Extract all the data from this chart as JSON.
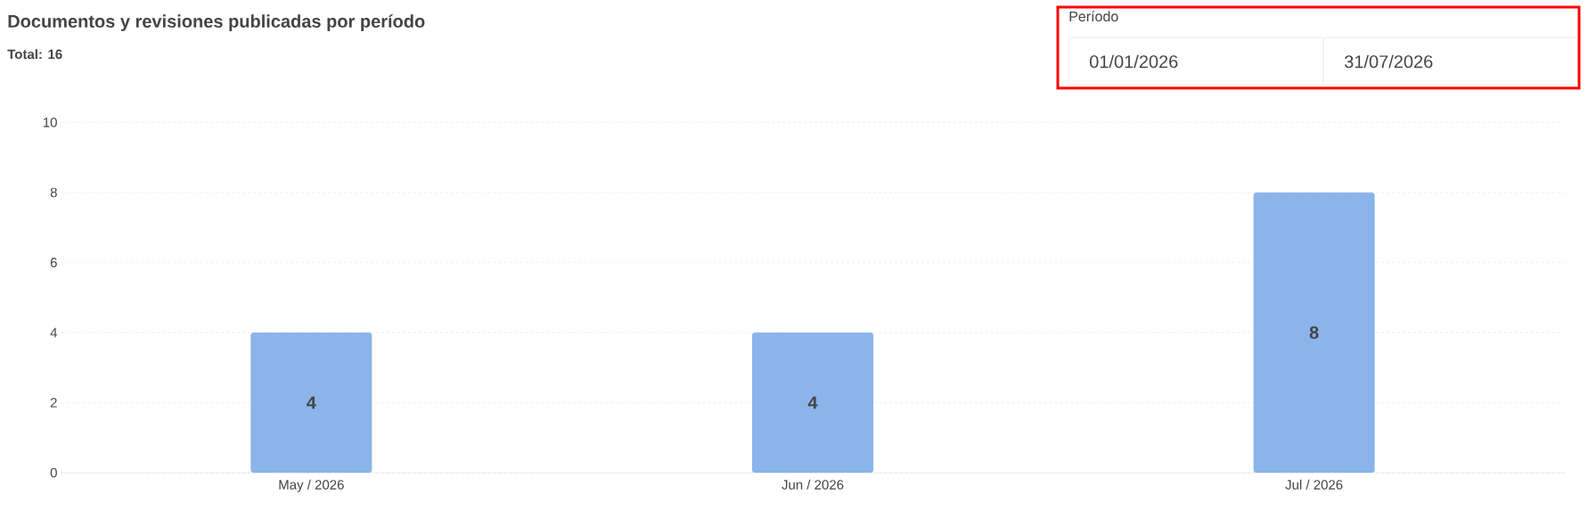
{
  "chart_data": {
    "type": "bar",
    "title": "Documentos y revisiones publicadas por período",
    "subtitle": "Total: 16",
    "annotations": [
      "Período",
      "01/01/2026",
      "31/07/2026"
    ],
    "categories": [
      "May / 2026",
      "Jun / 2026",
      "Jul / 2026"
    ],
    "values": [
      4,
      4,
      8
    ],
    "color": "#8ab4ea",
    "ylim": [
      0,
      10
    ],
    "yticks": [
      0,
      2,
      4,
      6,
      8,
      10
    ],
    "grid": "y",
    "data_labels": true
  }
}
